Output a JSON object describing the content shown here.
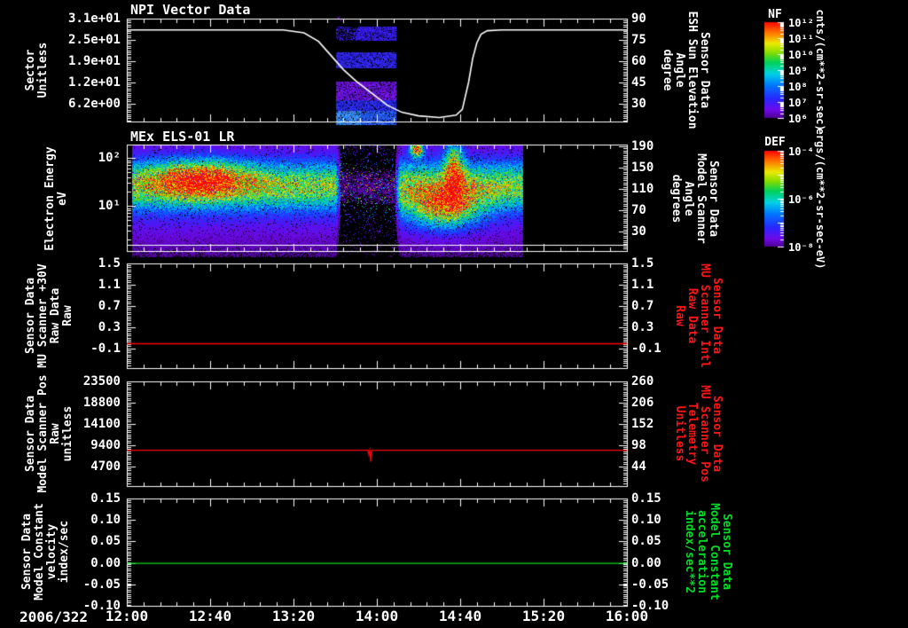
{
  "figure": {
    "bg_color": "#000000",
    "fg_color": "#ffffff",
    "accent_red": "#ff0000",
    "accent_green": "#00dd28",
    "date_label": "2006/322"
  },
  "x_axis": {
    "tick_labels": [
      "12:00",
      "12:40",
      "13:20",
      "14:00",
      "14:40",
      "15:20",
      "16:00"
    ],
    "start": "12:00",
    "end": "16:00",
    "minor_tick_step_minutes": 8
  },
  "panels": [
    {
      "title": "NPI Vector Data",
      "left_label": "Sector\nUnitless",
      "left_tick_labels": [
        "3.1e+01",
        "2.5e+01",
        "1.9e+01",
        "1.2e+01",
        "6.2e+00"
      ],
      "right_label": "Sensor Data\nESH Sun Elevation\nAngle\ndegree",
      "right_tick_labels": [
        "90",
        "75",
        "60",
        "45",
        "30"
      ],
      "right_label_color": "#ffffff"
    },
    {
      "title": "MEx ELS-01 LR",
      "left_label": "Electron Energy\neV",
      "left_tick_labels": [
        "10²",
        "10¹"
      ],
      "right_label": "Sensor Data\nModel Scanner\nAngle\ndegrees",
      "right_tick_labels": [
        "190",
        "150",
        "110",
        "70",
        "30"
      ],
      "right_label_color": "#ffffff"
    },
    {
      "title": "",
      "left_label": "Sensor Data\nMU Scanner +30V\nRaw Data\nRaw",
      "left_tick_labels": [
        "1.5",
        "1.1",
        "0.7",
        "0.3",
        "-0.1"
      ],
      "right_label": "Sensor Data\nMU Scanner Intl\nRaw Data\nRaw",
      "right_tick_labels": [
        "1.5",
        "1.1",
        "0.7",
        "0.3",
        "-0.1"
      ],
      "right_label_color": "#ff1414"
    },
    {
      "title": "",
      "left_label": "Sensor Data\nModel Scanner Pos\nRaw\nunitless",
      "left_tick_labels": [
        "23500",
        "18800",
        "14100",
        "9400",
        "4700"
      ],
      "right_label": "Sensor Data\nMU Scanner Pos\nTelemetry\nUnitless",
      "right_tick_labels": [
        "260",
        "206",
        "152",
        "98",
        "44"
      ],
      "right_label_color": "#ff1414"
    },
    {
      "title": "",
      "left_label": "Sensor Data\nModel Constant\nvelocity\nindex/sec",
      "left_tick_labels": [
        "0.15",
        "0.10",
        "0.05",
        "0.00",
        "-0.05",
        "-0.10"
      ],
      "right_label": "Sensor Data\nModel Constant\nacceleration\nindex/sec**2",
      "right_tick_labels": [
        "0.15",
        "0.10",
        "0.05",
        "0.00",
        "-0.05",
        "-0.10"
      ],
      "right_label_color": "#00dd28"
    }
  ],
  "colorbars": [
    {
      "title": "NF",
      "tick_labels": [
        "10¹²",
        "10¹¹",
        "10¹⁰",
        "10⁹",
        "10⁸",
        "10⁷",
        "10⁶"
      ],
      "unit": "cnts/(cm**2-sr-sec)"
    },
    {
      "title": "DEF",
      "tick_labels": [
        "10⁻⁴",
        "10⁻⁶",
        "10⁻⁸"
      ],
      "unit": "ergs/(cm**2-sr-sec-eV)"
    }
  ],
  "chart_data": [
    {
      "type": "line",
      "panel": 1,
      "title": "NPI Vector Data",
      "left_axis": {
        "label": "Sector Unitless",
        "tick_values": [
          31,
          25,
          19,
          12,
          6.2
        ]
      },
      "right_axis": {
        "label": "ESH Sun Elevation Angle (degree)",
        "tick_values": [
          90,
          75,
          60,
          45,
          30
        ]
      },
      "series": [
        {
          "name": "sun-elevation-angle",
          "color": "#ffffff",
          "x_minutes_after_1200": [
            0,
            75,
            85,
            92,
            98,
            104,
            110,
            118,
            125,
            132,
            140,
            150,
            158,
            161,
            164,
            166,
            168,
            170,
            173,
            180,
            240
          ],
          "y_degrees": [
            82,
            82,
            80,
            74,
            64,
            54,
            46,
            37,
            29,
            24,
            21.5,
            20.3,
            22,
            26,
            45,
            62,
            73,
            79,
            81.5,
            82,
            82
          ]
        }
      ],
      "spectrogram_blocks": {
        "time_range_minutes_after_1200": [
          100,
          129
        ],
        "description": "blue/purple banded raster blocks during eclipse gap",
        "band_colors": [
          "#3219e1",
          "#2d23e6",
          "#5a12d2",
          "#2828eb",
          "#2355f5"
        ]
      }
    },
    {
      "type": "heatmap",
      "panel": 2,
      "title": "MEx ELS-01 LR",
      "x_range": [
        "12:03",
        "15:10"
      ],
      "energy_ev_ticks": [
        100,
        10
      ],
      "energy_ev_range": [
        1.1,
        190
      ],
      "colorbar": "DEF 10^-8 .. 10^-4 ergs/(cm**2-sr-sec-eV)",
      "features": [
        {
          "name": "broad-background",
          "loge_center": 1.3,
          "loge_sigma": 0.9,
          "amp": 0.2
        },
        {
          "name": "main-band",
          "loge_center": 1.42,
          "loge_sigma": 0.34,
          "amp": 0.5
        },
        {
          "name": "hot-blob-morning",
          "t_center_min": 35,
          "t_sigma": 16,
          "loge_center": 1.58,
          "loge_sigma": 0.26,
          "amp": 0.5
        },
        {
          "name": "hot-blob-afternoon",
          "t_center_min": 152,
          "t_sigma": 12,
          "loge_center": 0.95,
          "loge_sigma": 0.3,
          "amp": 0.55
        },
        {
          "name": "vertical-plume",
          "t_center_min": 157,
          "t_sigma": 3.2,
          "loge_center": 1.8,
          "loge_sigma": 0.45,
          "amp": 0.55
        },
        {
          "name": "high-energy-spot",
          "t_center_min": 139,
          "t_sigma": 2.2,
          "loge_center": 2.18,
          "loge_sigma": 0.1,
          "amp": 0.85
        }
      ],
      "quiet_gap_minutes_after_1200": [
        100,
        131
      ],
      "overlay_white_line": true
    },
    {
      "type": "line",
      "panel": 3,
      "series": [
        {
          "name": "mu-scanner-30v-raw",
          "color": "#ff0000",
          "constant_value": 0.0
        }
      ],
      "ylim": [
        -0.5,
        1.5
      ]
    },
    {
      "type": "line",
      "panel": 4,
      "series": [
        {
          "name": "model-scanner-pos-raw",
          "color": "#ff0000",
          "constant_value": 8400,
          "dip": {
            "time_minutes_after_1200": 117,
            "time": "13:57",
            "min_value": 5900
          }
        }
      ],
      "ylim": [
        1000,
        23500
      ]
    },
    {
      "type": "line",
      "panel": 5,
      "series": [
        {
          "name": "model-constant-velocity",
          "color": "#00dd28",
          "constant_value": 0.0
        }
      ],
      "ylim": [
        -0.1,
        0.15
      ]
    }
  ]
}
